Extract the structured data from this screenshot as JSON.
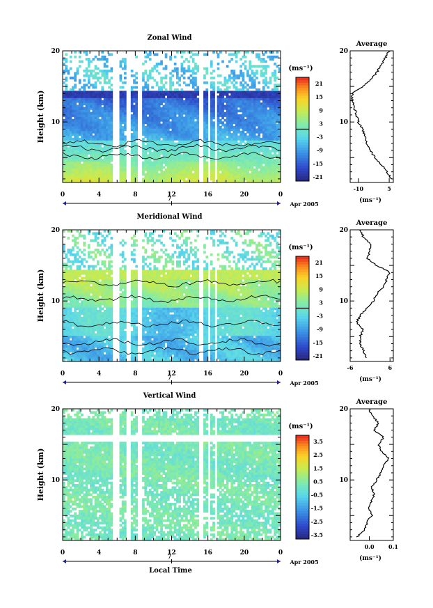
{
  "figure": {
    "xlabel": "Local Time",
    "date_label": "Apr 2005",
    "day_label": "7"
  },
  "chart_data": [
    {
      "type": "heatmap",
      "id": "zonal",
      "title": "Zonal Wind",
      "xlabel": "Local Time",
      "ylabel": "Height (km)",
      "xlim": [
        0,
        24
      ],
      "ylim": [
        1.5,
        20
      ],
      "x_ticks": [
        "0",
        "4",
        "8",
        "12",
        "16",
        "20",
        "0"
      ],
      "y_ticks": [
        "20",
        "10"
      ],
      "colorbar": {
        "unit": "(ms⁻¹)",
        "range": [
          -24,
          24
        ],
        "tick_labels": [
          "21",
          "15",
          "9",
          "3",
          "-3",
          "-9",
          "-15",
          "-21"
        ],
        "zero_line": true
      },
      "average_profile": {
        "title": "Average",
        "xlabel": "(ms⁻¹)",
        "xlim": [
          -14,
          7
        ],
        "x_ticks": [
          "-10",
          "5"
        ],
        "y_ticks": [
          "20",
          "10"
        ],
        "heights": [
          2,
          3,
          4,
          5,
          6,
          7,
          8,
          9,
          10,
          11,
          12,
          13,
          14,
          15,
          16,
          17,
          18,
          19,
          20
        ],
        "values": [
          6,
          4,
          1,
          -2,
          -4,
          -6,
          -7,
          -8,
          -10,
          -11,
          -12,
          -13,
          -13,
          -8,
          -4,
          -1,
          1,
          3,
          5
        ]
      }
    },
    {
      "type": "heatmap",
      "id": "meridional",
      "title": "Meridional Wind",
      "xlabel": "Local Time",
      "ylabel": "Height (km)",
      "xlim": [
        0,
        24
      ],
      "ylim": [
        1.5,
        20
      ],
      "x_ticks": [
        "0",
        "4",
        "8",
        "12",
        "16",
        "20",
        "0"
      ],
      "y_ticks": [
        "20",
        "10"
      ],
      "colorbar": {
        "unit": "(ms⁻¹)",
        "range": [
          -24,
          24
        ],
        "tick_labels": [
          "21",
          "15",
          "9",
          "3",
          "-3",
          "-9",
          "-15",
          "-21"
        ],
        "zero_line": true
      },
      "average_profile": {
        "title": "Average",
        "xlabel": "(ms⁻¹)",
        "xlim": [
          -6,
          7
        ],
        "x_ticks": [
          "-6",
          "6"
        ],
        "y_ticks": [
          "20",
          "10"
        ],
        "heights": [
          2,
          3,
          4,
          5,
          6,
          7,
          8,
          9,
          10,
          11,
          12,
          13,
          14,
          15,
          16,
          17,
          18,
          19,
          20
        ],
        "values": [
          -1,
          -2,
          -3,
          -3,
          -2,
          -4,
          -3,
          -1,
          1,
          2,
          4,
          5,
          6,
          2,
          -1,
          0,
          0,
          -2,
          -3
        ]
      }
    },
    {
      "type": "heatmap",
      "id": "vertical",
      "title": "Vertical Wind",
      "xlabel": "Local Time",
      "ylabel": "Height (km)",
      "xlim": [
        0,
        24
      ],
      "ylim": [
        1.5,
        20
      ],
      "x_ticks": [
        "0",
        "4",
        "8",
        "12",
        "16",
        "20",
        "0"
      ],
      "y_ticks": [
        "20",
        "10"
      ],
      "colorbar": {
        "unit": "(ms⁻¹)",
        "range": [
          -4,
          4
        ],
        "tick_labels": [
          "3.5",
          "2.5",
          "1.5",
          "0.5",
          "-0.5",
          "-1.5",
          "-2.5",
          "-3.5"
        ],
        "zero_line": false
      },
      "average_profile": {
        "title": "Average",
        "xlabel": "(ms⁻¹)",
        "xlim": [
          -0.08,
          0.1
        ],
        "x_ticks": [
          "0.0",
          "0.1"
        ],
        "y_ticks": [
          "20",
          "10"
        ],
        "heights": [
          2,
          3,
          4,
          5,
          6,
          7,
          8,
          9,
          10,
          11,
          12,
          13,
          14,
          15,
          16,
          17,
          18,
          19,
          20
        ],
        "values": [
          -0.05,
          -0.02,
          -0.01,
          0.01,
          0.0,
          0.01,
          0.02,
          0.01,
          0.03,
          0.05,
          0.06,
          0.08,
          0.05,
          0.04,
          0.06,
          0.02,
          0.04,
          0.01,
          0.0
        ]
      }
    }
  ]
}
